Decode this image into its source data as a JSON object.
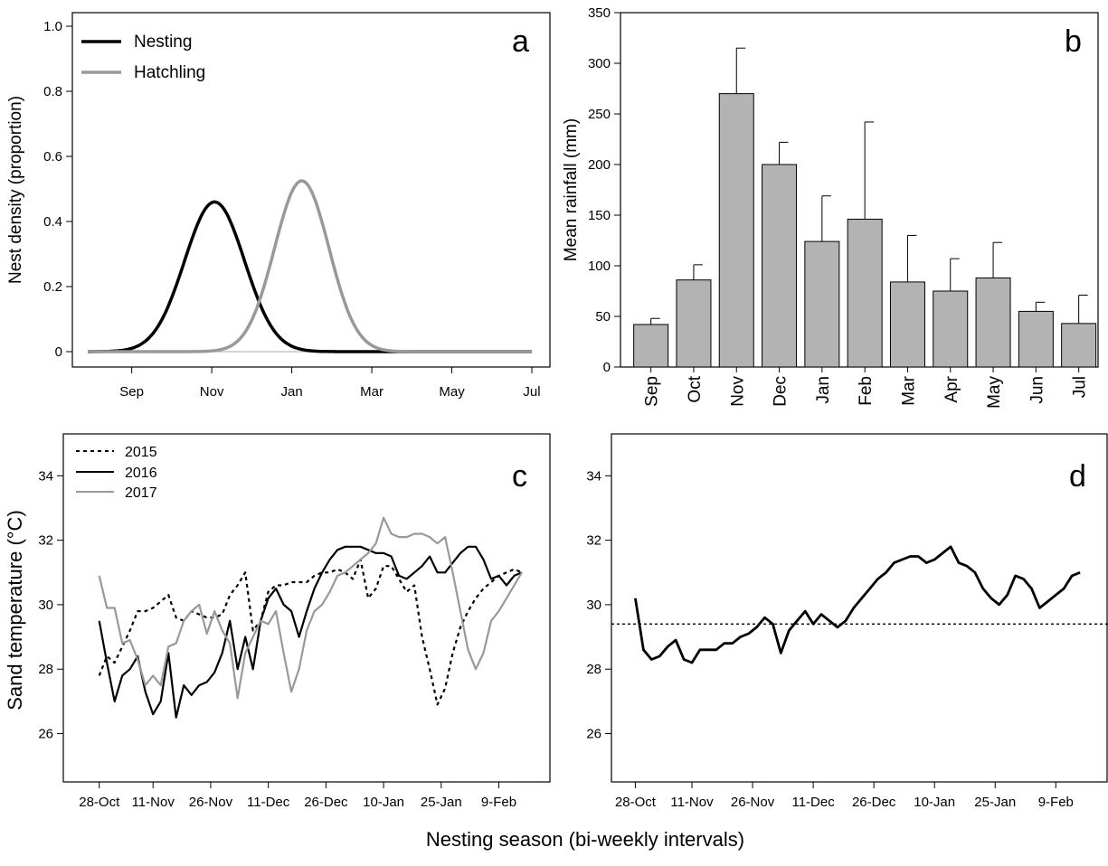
{
  "figure": {
    "shared_xlabel": "Nesting season (bi-weekly intervals)",
    "colors": {
      "black": "#000000",
      "gray": "#999999",
      "bar_fill": "#b3b3b3"
    }
  },
  "chart_data": [
    {
      "panel": "a",
      "type": "line",
      "ylabel": "Nest density (proportion)",
      "xlabel": "",
      "ylim": [
        0,
        1.0
      ],
      "yticks": [
        "0",
        "0.2",
        "0.4",
        "0.6",
        "0.8",
        "1.0"
      ],
      "xticks": [
        "Sep",
        "Nov",
        "Jan",
        "Mar",
        "May",
        "Jul"
      ],
      "x_months": {
        "Sep": 0,
        "Nov": 2,
        "Jan": 4,
        "Mar": 6,
        "May": 8,
        "Jul": 10
      },
      "xlim": [
        -1.1,
        10
      ],
      "legend": "top-left",
      "series": [
        {
          "name": "Nesting",
          "color": "#000000",
          "peak_month": 2.07,
          "peak": 0.46,
          "sd_months": 0.75
        },
        {
          "name": "Hatchling",
          "color": "#999999",
          "peak_month": 4.25,
          "peak": 0.525,
          "sd_months": 0.68
        }
      ]
    },
    {
      "panel": "b",
      "type": "bar",
      "ylabel": "Mean rainfall (mm)",
      "ylim": [
        0,
        350
      ],
      "yticks": [
        "0",
        "50",
        "100",
        "150",
        "200",
        "250",
        "300",
        "350"
      ],
      "categories": [
        "Sep",
        "Oct",
        "Nov",
        "Dec",
        "Jan",
        "Feb",
        "Mar",
        "Apr",
        "May",
        "Jun",
        "Jul"
      ],
      "values": [
        42,
        86,
        270,
        200,
        124,
        146,
        84,
        75,
        88,
        55,
        43
      ],
      "errors": [
        6,
        15,
        45,
        22,
        45,
        96,
        46,
        32,
        35,
        9,
        28
      ],
      "color": "#b3b3b3"
    },
    {
      "panel": "c",
      "type": "line",
      "ylabel": "Sand temperature (°C)",
      "ylim": [
        24.5,
        35.3
      ],
      "yticks": [
        "26",
        "28",
        "30",
        "32",
        "34"
      ],
      "xticks": [
        "28-Oct",
        "11-Nov",
        "26-Nov",
        "11-Dec",
        "26-Dec",
        "10-Jan",
        "25-Jan",
        "9-Feb"
      ],
      "xtick_days": [
        0,
        14,
        29,
        44,
        59,
        74,
        89,
        104
      ],
      "xlim": [
        -3,
        114
      ],
      "legend": "top-left",
      "series": [
        {
          "name": "2015",
          "style": "dotted",
          "color": "#000000",
          "x": [
            0,
            2,
            4,
            6,
            8,
            10,
            12,
            14,
            16,
            18,
            20,
            22,
            24,
            26,
            28,
            30,
            32,
            34,
            36,
            38,
            40,
            42,
            44,
            46,
            48,
            50,
            52,
            54,
            56,
            58,
            60,
            62,
            64,
            66,
            68,
            70,
            72,
            74,
            76,
            78,
            80,
            82,
            84,
            86,
            88,
            90,
            92,
            94,
            96,
            98,
            100,
            102,
            104,
            106,
            108,
            110
          ],
          "y": [
            27.8,
            28.4,
            28.2,
            28.7,
            29.2,
            29.8,
            29.8,
            29.9,
            30.1,
            30.3,
            29.6,
            29.5,
            29.8,
            29.7,
            29.6,
            29.6,
            29.7,
            30.3,
            30.6,
            31.0,
            29.2,
            29.5,
            30.4,
            30.6,
            30.6,
            30.7,
            30.7,
            30.7,
            30.9,
            31.0,
            31.0,
            31.1,
            31.0,
            30.8,
            31.4,
            30.2,
            30.5,
            31.2,
            31.2,
            30.8,
            30.4,
            30.6,
            29.0,
            28.0,
            26.9,
            27.4,
            28.5,
            29.3,
            29.8,
            30.2,
            30.5,
            30.7,
            30.9,
            31.0,
            31.1,
            31.0
          ]
        },
        {
          "name": "2016",
          "style": "solid",
          "color": "#000000",
          "x": [
            0,
            2,
            4,
            6,
            8,
            10,
            12,
            14,
            16,
            18,
            20,
            22,
            24,
            26,
            28,
            30,
            32,
            34,
            36,
            38,
            40,
            42,
            44,
            46,
            48,
            50,
            52,
            54,
            56,
            58,
            60,
            62,
            64,
            66,
            68,
            70,
            72,
            74,
            76,
            78,
            80,
            82,
            84,
            86,
            88,
            90,
            92,
            94,
            96,
            98,
            100,
            102,
            104,
            106,
            108,
            110
          ],
          "y": [
            29.5,
            28.2,
            27.0,
            27.8,
            28.0,
            28.4,
            27.3,
            26.6,
            27.0,
            28.5,
            26.5,
            27.5,
            27.2,
            27.5,
            27.6,
            27.9,
            28.5,
            29.5,
            28.0,
            29.0,
            28.0,
            29.5,
            30.2,
            30.5,
            30.0,
            29.8,
            29.0,
            29.8,
            30.5,
            31.0,
            31.4,
            31.7,
            31.8,
            31.8,
            31.8,
            31.7,
            31.6,
            31.6,
            31.5,
            30.9,
            30.8,
            31.0,
            31.2,
            31.5,
            31.0,
            31.0,
            31.3,
            31.6,
            31.8,
            31.8,
            31.4,
            30.8,
            30.9,
            30.6,
            30.9,
            31.0
          ]
        },
        {
          "name": "2017",
          "style": "solid",
          "color": "#999999",
          "x": [
            0,
            2,
            4,
            6,
            8,
            10,
            12,
            14,
            16,
            18,
            20,
            22,
            24,
            26,
            28,
            30,
            32,
            34,
            36,
            38,
            40,
            42,
            44,
            46,
            48,
            50,
            52,
            54,
            56,
            58,
            60,
            62,
            64,
            66,
            68,
            70,
            72,
            74,
            76,
            78,
            80,
            82,
            84,
            86,
            88,
            90,
            92,
            94,
            96,
            98,
            100,
            102,
            104,
            106,
            108,
            110
          ],
          "y": [
            30.9,
            29.9,
            29.9,
            28.8,
            28.9,
            28.3,
            27.5,
            27.8,
            27.5,
            28.7,
            28.8,
            29.5,
            29.8,
            30.0,
            29.1,
            29.8,
            29.2,
            28.8,
            27.1,
            28.5,
            29.0,
            29.5,
            29.4,
            29.8,
            28.5,
            27.3,
            28.0,
            29.2,
            29.8,
            30.0,
            30.4,
            30.9,
            31.0,
            31.2,
            31.4,
            31.6,
            31.9,
            32.7,
            32.2,
            32.1,
            32.1,
            32.2,
            32.2,
            32.1,
            31.9,
            32.1,
            31.0,
            29.8,
            28.6,
            28.0,
            28.5,
            29.5,
            29.8,
            30.2,
            30.6,
            31.0
          ]
        }
      ]
    },
    {
      "panel": "d",
      "type": "line",
      "ylim": [
        24.5,
        35.3
      ],
      "yticks": [
        "26",
        "28",
        "30",
        "32",
        "34"
      ],
      "xticks": [
        "28-Oct",
        "11-Nov",
        "26-Nov",
        "11-Dec",
        "26-Dec",
        "10-Jan",
        "25-Jan",
        "9-Feb"
      ],
      "xtick_days": [
        0,
        14,
        29,
        44,
        59,
        74,
        89,
        104
      ],
      "xlim": [
        -3,
        114
      ],
      "reference_line": 29.4,
      "series": [
        {
          "style": "solid",
          "color": "#000000",
          "x": [
            0,
            2,
            4,
            6,
            8,
            10,
            12,
            14,
            16,
            18,
            20,
            22,
            24,
            26,
            28,
            30,
            32,
            34,
            36,
            38,
            40,
            42,
            44,
            46,
            48,
            50,
            52,
            54,
            56,
            58,
            60,
            62,
            64,
            66,
            68,
            70,
            72,
            74,
            76,
            78,
            80,
            82,
            84,
            86,
            88,
            90,
            92,
            94,
            96,
            98,
            100,
            102,
            104,
            106,
            108,
            110
          ],
          "y": [
            30.2,
            28.6,
            28.3,
            28.4,
            28.7,
            28.9,
            28.3,
            28.2,
            28.6,
            28.6,
            28.6,
            28.8,
            28.8,
            29.0,
            29.1,
            29.3,
            29.6,
            29.4,
            28.5,
            29.2,
            29.5,
            29.8,
            29.4,
            29.7,
            29.5,
            29.3,
            29.5,
            29.9,
            30.2,
            30.5,
            30.8,
            31.0,
            31.3,
            31.4,
            31.5,
            31.5,
            31.3,
            31.4,
            31.6,
            31.8,
            31.3,
            31.2,
            31.0,
            30.5,
            30.2,
            30.0,
            30.3,
            30.9,
            30.8,
            30.5,
            29.9,
            30.1,
            30.3,
            30.5,
            30.9,
            31.0
          ]
        }
      ]
    }
  ]
}
